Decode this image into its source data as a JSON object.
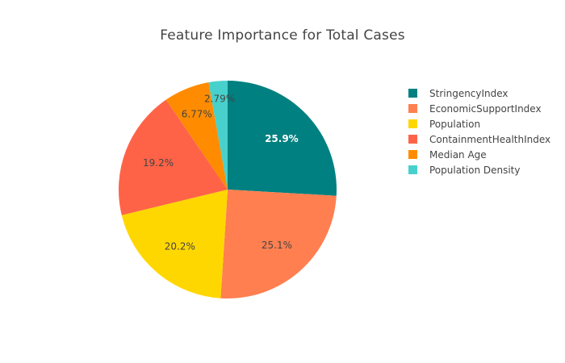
{
  "chart_data": {
    "type": "pie",
    "title": "Feature Importance for Total Cases",
    "sort": "descending",
    "direction": "clockwise",
    "start": "12 o'clock",
    "legend_position": "right",
    "slices": [
      {
        "label": "StringencyIndex",
        "value": 25.9,
        "display": "25.9%",
        "color": "#008080",
        "text_color": "#ffffff"
      },
      {
        "label": "EconomicSupportIndex",
        "value": 25.1,
        "display": "25.1%",
        "color": "#ff7f50",
        "text_color": "#444444"
      },
      {
        "label": "Population",
        "value": 20.2,
        "display": "20.2%",
        "color": "#ffd700",
        "text_color": "#444444"
      },
      {
        "label": "ContainmentHealthIndex",
        "value": 19.2,
        "display": "19.2%",
        "color": "#ff6347",
        "text_color": "#444444"
      },
      {
        "label": "Median Age",
        "value": 6.77,
        "display": "6.77%",
        "color": "#ff8c00",
        "text_color": "#444444"
      },
      {
        "label": "Population Density",
        "value": 2.79,
        "display": "2.79%",
        "color": "#48d1cc",
        "text_color": "#444444"
      }
    ]
  }
}
